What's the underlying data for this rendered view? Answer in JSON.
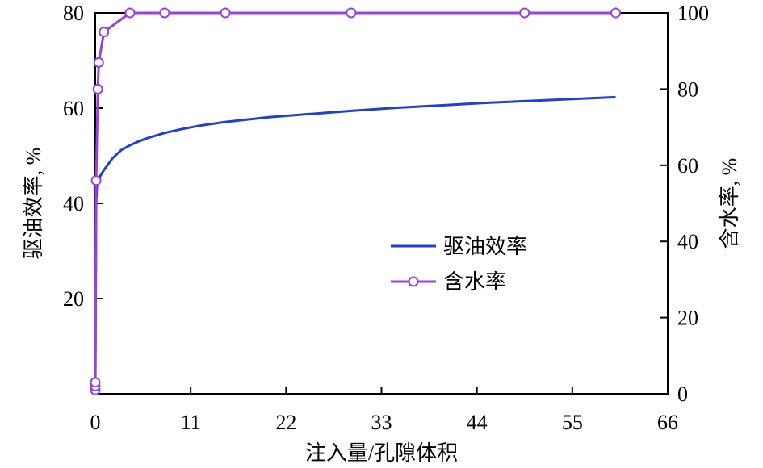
{
  "chart_data": {
    "type": "line",
    "x": {
      "label": "注入量/孔隙体积",
      "ticks": [
        0,
        11,
        22,
        33,
        44,
        55,
        66
      ],
      "range": [
        0,
        66
      ]
    },
    "y_left": {
      "label": "驱油效率, %",
      "ticks": [
        20,
        40,
        60,
        80
      ],
      "range": [
        0,
        80
      ]
    },
    "y_right": {
      "label": "含水率, %",
      "ticks": [
        0,
        20,
        40,
        60,
        80,
        100
      ],
      "range": [
        0,
        100
      ]
    },
    "legend": {
      "position": "center-right",
      "entries": [
        "驱油效率",
        "含水率"
      ]
    },
    "grid": false,
    "series": [
      {
        "name": "驱油效率",
        "axis": "left",
        "color": "#1f3fd6",
        "marker": "none",
        "points": [
          [
            0,
            0
          ],
          [
            0.05,
            20
          ],
          [
            0.1,
            40
          ],
          [
            0.2,
            44
          ],
          [
            0.5,
            45.5
          ],
          [
            1,
            47
          ],
          [
            2,
            49.5
          ],
          [
            3,
            51.2
          ],
          [
            4,
            52.2
          ],
          [
            5,
            53
          ],
          [
            6,
            53.7
          ],
          [
            8,
            54.8
          ],
          [
            10,
            55.6
          ],
          [
            12,
            56.3
          ],
          [
            15,
            57.1
          ],
          [
            20,
            58.1
          ],
          [
            25,
            58.8
          ],
          [
            30,
            59.5
          ],
          [
            35,
            60.1
          ],
          [
            40,
            60.6
          ],
          [
            45,
            61.1
          ],
          [
            50,
            61.5
          ],
          [
            55,
            61.9
          ],
          [
            60,
            62.3
          ]
        ]
      },
      {
        "name": "含水率",
        "axis": "right",
        "color": "#9b3fe0",
        "marker": "circle",
        "points": [
          [
            0,
            1
          ],
          [
            0,
            2
          ],
          [
            0,
            3
          ],
          [
            0.1,
            56
          ],
          [
            0.3,
            80
          ],
          [
            0.4,
            87
          ],
          [
            1,
            95
          ],
          [
            4,
            100
          ],
          [
            8,
            100
          ],
          [
            15,
            100
          ],
          [
            29.5,
            100
          ],
          [
            49.5,
            100
          ],
          [
            60,
            100
          ]
        ]
      }
    ]
  }
}
